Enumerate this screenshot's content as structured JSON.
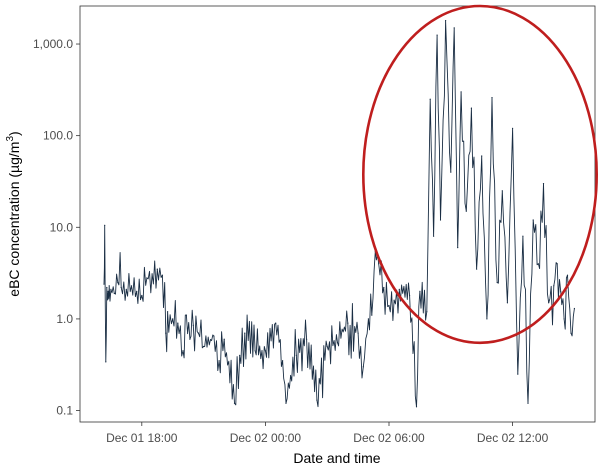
{
  "chart_data": {
    "type": "line",
    "title": "",
    "xlabel": "Date and time",
    "ylabel_main": "eBC concentration (µg/m",
    "ylabel_sup": "3",
    "ylabel_close": ")",
    "y_scale": "log10",
    "ylim": [
      0.075,
      2600
    ],
    "xlim": [
      "2023-12-01T15:00",
      "2023-12-02T16:00"
    ],
    "x_tick_labels": [
      "Dec 01 18:00",
      "Dec 02 00:00",
      "Dec 02 06:00",
      "Dec 02 12:00"
    ],
    "x_tick_values": [
      "2023-12-01T18:00",
      "2023-12-02T00:00",
      "2023-12-02T06:00",
      "2023-12-02T12:00"
    ],
    "y_tick_labels": [
      "0.1",
      "1.0",
      "10.0",
      "100.0",
      "1,000.0"
    ],
    "y_tick_values": [
      0.1,
      1,
      10,
      100,
      1000
    ],
    "grid": false,
    "panel_border": true,
    "series": [
      {
        "color": "#1a2e44",
        "x": [
          "2023-12-01T16:10",
          "2023-12-01T16:12",
          "2023-12-01T16:15",
          "2023-12-01T16:18",
          "2023-12-01T16:22",
          "2023-12-01T16:25",
          "2023-12-01T16:30",
          "2023-12-01T16:40",
          "2023-12-01T16:50",
          "2023-12-01T17:00",
          "2023-12-01T17:15",
          "2023-12-01T17:30",
          "2023-12-01T17:45",
          "2023-12-01T18:00",
          "2023-12-01T18:15",
          "2023-12-01T18:30",
          "2023-12-01T18:45",
          "2023-12-01T19:00",
          "2023-12-01T19:10",
          "2023-12-01T19:15",
          "2023-12-01T19:30",
          "2023-12-01T19:45",
          "2023-12-01T20:00",
          "2023-12-01T20:10",
          "2023-12-01T20:20",
          "2023-12-01T20:30",
          "2023-12-01T20:45",
          "2023-12-01T21:00",
          "2023-12-01T21:30",
          "2023-12-01T21:45",
          "2023-12-01T22:00",
          "2023-12-01T22:30",
          "2023-12-01T22:45",
          "2023-12-01T23:00",
          "2023-12-01T23:30",
          "2023-12-02T00:00",
          "2023-12-02T00:30",
          "2023-12-02T00:50",
          "2023-12-02T01:00",
          "2023-12-02T01:30",
          "2023-12-02T02:00",
          "2023-12-02T02:30",
          "2023-12-02T03:00",
          "2023-12-02T03:30",
          "2023-12-02T04:00",
          "2023-12-02T04:30",
          "2023-12-02T04:45",
          "2023-12-02T05:00",
          "2023-12-02T05:10",
          "2023-12-02T05:20",
          "2023-12-02T05:30",
          "2023-12-02T05:45",
          "2023-12-02T06:00",
          "2023-12-02T06:15",
          "2023-12-02T06:30",
          "2023-12-02T07:00",
          "2023-12-02T07:20",
          "2023-12-02T07:30",
          "2023-12-02T07:50",
          "2023-12-02T08:00",
          "2023-12-02T08:10",
          "2023-12-02T08:20",
          "2023-12-02T08:30",
          "2023-12-02T08:45",
          "2023-12-02T09:00",
          "2023-12-02T09:10",
          "2023-12-02T09:20",
          "2023-12-02T09:30",
          "2023-12-02T09:45",
          "2023-12-02T10:00",
          "2023-12-02T10:15",
          "2023-12-02T10:30",
          "2023-12-02T10:45",
          "2023-12-02T11:00",
          "2023-12-02T11:15",
          "2023-12-02T11:30",
          "2023-12-02T11:45",
          "2023-12-02T12:00",
          "2023-12-02T12:15",
          "2023-12-02T12:30",
          "2023-12-02T12:45",
          "2023-12-02T13:00",
          "2023-12-02T13:15",
          "2023-12-02T13:30",
          "2023-12-02T13:45",
          "2023-12-02T14:00",
          "2023-12-02T14:10",
          "2023-12-02T14:20",
          "2023-12-02T14:30",
          "2023-12-02T14:40",
          "2023-12-02T14:50",
          "2023-12-02T15:00"
        ],
        "y": [
          2.4,
          10.5,
          0.34,
          2.2,
          2.0,
          2.3,
          2.1,
          1.9,
          2.5,
          2.2,
          2.1,
          2.3,
          2.0,
          1.8,
          2.8,
          3.1,
          3.5,
          3.0,
          0.7,
          1.2,
          1.0,
          0.9,
          0.45,
          1.1,
          0.6,
          0.85,
          0.7,
          0.5,
          0.65,
          0.35,
          0.6,
          0.12,
          0.4,
          0.7,
          0.45,
          0.45,
          0.9,
          0.35,
          0.12,
          0.4,
          0.6,
          0.13,
          0.5,
          0.55,
          0.9,
          0.7,
          0.3,
          1.0,
          1.1,
          5.5,
          4.0,
          2.2,
          1.4,
          1.6,
          2.1,
          1.8,
          0.11,
          2.0,
          1.2,
          250,
          8.0,
          1250,
          12,
          1800,
          40,
          1500,
          6,
          300,
          15,
          200,
          3.5,
          60,
          1,
          260,
          2.5,
          25,
          1.5,
          120,
          0.25,
          8,
          0.12,
          12,
          4,
          30,
          1.5,
          2.3,
          4.0,
          2.0,
          1.0,
          3.0,
          0.7,
          1.3
        ]
      }
    ],
    "annotation": {
      "type": "ellipse",
      "color": "#bf1e1e",
      "center": [
        "2023-12-02T10:25",
        23
      ],
      "x_halfwidth_minutes": 340,
      "y_range": [
        0.55,
        2600
      ]
    }
  }
}
